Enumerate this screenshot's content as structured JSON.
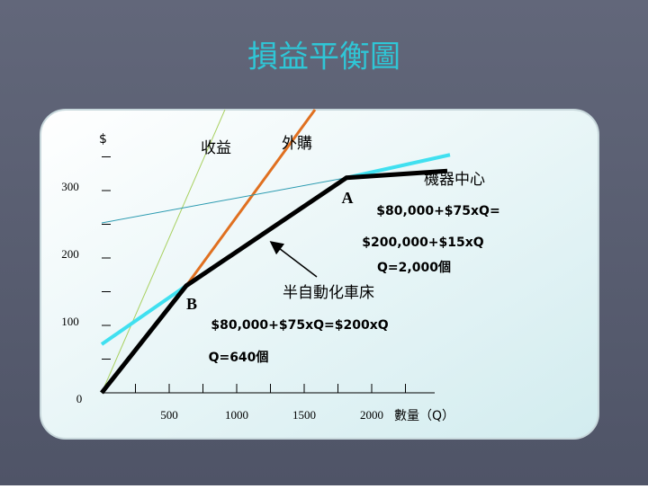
{
  "title": "損益平衡圖",
  "chart_data": {
    "type": "line",
    "y_label": "$",
    "x_label": "數量（Q）",
    "xlim": [
      0,
      2580
    ],
    "ylim": [
      0,
      420
    ],
    "xticks": [
      500,
      1000,
      1500,
      2000
    ],
    "xticks_minor": [
      250,
      750,
      1250,
      1750,
      2250
    ],
    "yticks": [
      0,
      100,
      200,
      300
    ],
    "yticks_minor": [
      50,
      150,
      250,
      350
    ],
    "series": [
      {
        "name": "收益",
        "color": "#a8d060",
        "width": 1,
        "x": [
          0,
          913
        ],
        "values": [
          0,
          420
        ]
      },
      {
        "name": "外購",
        "color": "#e07020",
        "width": 3,
        "x": [
          627,
          1580
        ],
        "values": [
          159,
          420
        ]
      },
      {
        "name": "半自動化車床",
        "color": "#40e0f0",
        "width": 4,
        "x": [
          0,
          627,
          1813,
          2580
        ],
        "values": [
          72,
          159,
          319,
          353
        ]
      },
      {
        "color": "#2a9ab0",
        "width": 1,
        "x": [
          0,
          1813
        ],
        "values": [
          252,
          319
        ]
      },
      {
        "name": "機器中心",
        "color": "#000000",
        "width": 5,
        "x": [
          0,
          627,
          1813,
          2560
        ],
        "values": [
          0,
          159,
          319,
          329
        ]
      }
    ],
    "annotations": [
      "A",
      "$80,000+$75xQ=",
      "$200,000+$15xQ",
      "Q=2,000個",
      "B",
      "$80,000+$75xQ=$200xQ",
      "Q=640個"
    ]
  }
}
